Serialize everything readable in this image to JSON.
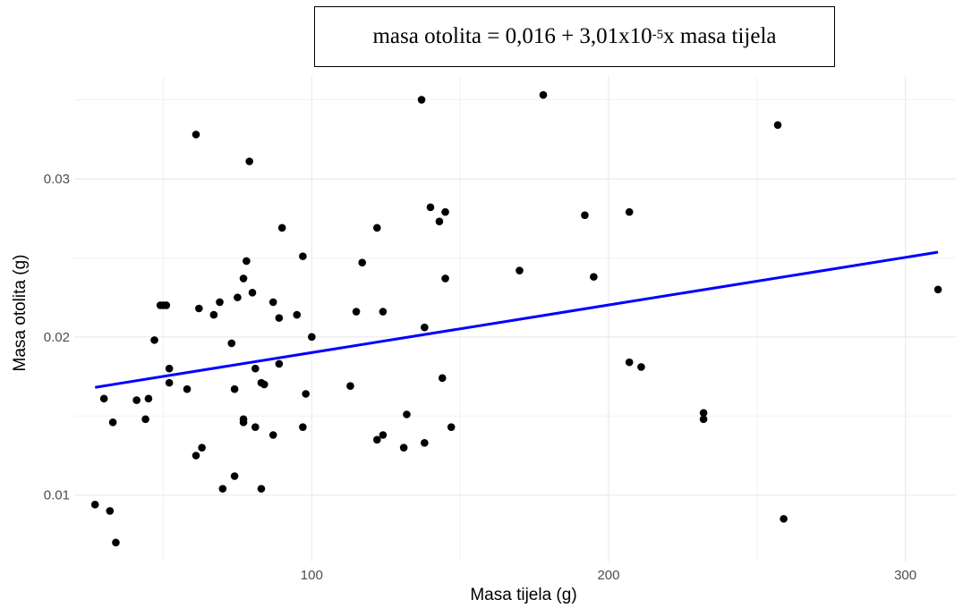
{
  "equation": {
    "prefix": "masa otolita = 0,016 + 3,01x10",
    "exponent": "-5",
    "suffix": " x masa tijela"
  },
  "chart_data": {
    "type": "scatter",
    "xlabel": "Masa tijela (g)",
    "ylabel": "Masa otolita (g)",
    "xlim": [
      20,
      317
    ],
    "ylim": [
      0.0058,
      0.0365
    ],
    "x_ticks": [
      {
        "value": 100,
        "label": "100"
      },
      {
        "value": 200,
        "label": "200"
      },
      {
        "value": 300,
        "label": "300"
      }
    ],
    "y_ticks": [
      {
        "value": 0.01,
        "label": "0.01"
      },
      {
        "value": 0.02,
        "label": "0.02"
      },
      {
        "value": 0.03,
        "label": "0.03"
      }
    ],
    "grid": true,
    "series": [
      {
        "points": [
          [
            27,
            0.0094
          ],
          [
            30,
            0.0161
          ],
          [
            32,
            0.009
          ],
          [
            33,
            0.0146
          ],
          [
            34,
            0.007
          ],
          [
            41,
            0.016
          ],
          [
            44,
            0.0148
          ],
          [
            45,
            0.0161
          ],
          [
            47,
            0.0198
          ],
          [
            49,
            0.022
          ],
          [
            50,
            0.022
          ],
          [
            51,
            0.022
          ],
          [
            52,
            0.018
          ],
          [
            52,
            0.0171
          ],
          [
            58,
            0.0167
          ],
          [
            61,
            0.0328
          ],
          [
            61,
            0.0125
          ],
          [
            62,
            0.0218
          ],
          [
            63,
            0.013
          ],
          [
            67,
            0.0214
          ],
          [
            69,
            0.0222
          ],
          [
            70,
            0.0104
          ],
          [
            73,
            0.0196
          ],
          [
            74,
            0.0112
          ],
          [
            74,
            0.0167
          ],
          [
            75,
            0.0225
          ],
          [
            77,
            0.0237
          ],
          [
            77,
            0.0148
          ],
          [
            77,
            0.0146
          ],
          [
            78,
            0.0248
          ],
          [
            79,
            0.0311
          ],
          [
            80,
            0.0228
          ],
          [
            81,
            0.018
          ],
          [
            81,
            0.0143
          ],
          [
            83,
            0.0171
          ],
          [
            83,
            0.0104
          ],
          [
            84,
            0.017
          ],
          [
            87,
            0.0222
          ],
          [
            87,
            0.0138
          ],
          [
            89,
            0.0212
          ],
          [
            89,
            0.0183
          ],
          [
            90,
            0.0269
          ],
          [
            95,
            0.0214
          ],
          [
            97,
            0.0251
          ],
          [
            97,
            0.0143
          ],
          [
            98,
            0.0164
          ],
          [
            100,
            0.02
          ],
          [
            113,
            0.0169
          ],
          [
            115,
            0.0216
          ],
          [
            117,
            0.0247
          ],
          [
            122,
            0.0269
          ],
          [
            122,
            0.0135
          ],
          [
            124,
            0.0216
          ],
          [
            124,
            0.0138
          ],
          [
            131,
            0.013
          ],
          [
            132,
            0.0151
          ],
          [
            137,
            0.035
          ],
          [
            138,
            0.0206
          ],
          [
            138,
            0.0133
          ],
          [
            140,
            0.0282
          ],
          [
            143,
            0.0273
          ],
          [
            144,
            0.0174
          ],
          [
            145,
            0.0279
          ],
          [
            145,
            0.0237
          ],
          [
            147,
            0.0143
          ],
          [
            170,
            0.0242
          ],
          [
            178,
            0.0353
          ],
          [
            192,
            0.0277
          ],
          [
            195,
            0.0238
          ],
          [
            207,
            0.0279
          ],
          [
            207,
            0.0184
          ],
          [
            211,
            0.0181
          ],
          [
            232,
            0.0152
          ],
          [
            232,
            0.0148
          ],
          [
            257,
            0.0334
          ],
          [
            259,
            0.0085
          ],
          [
            311,
            0.023
          ]
        ]
      }
    ],
    "fit_line": {
      "color": "#0000ff",
      "intercept": 0.016,
      "slope": 3.01e-05,
      "x_range": [
        27,
        311
      ]
    }
  }
}
